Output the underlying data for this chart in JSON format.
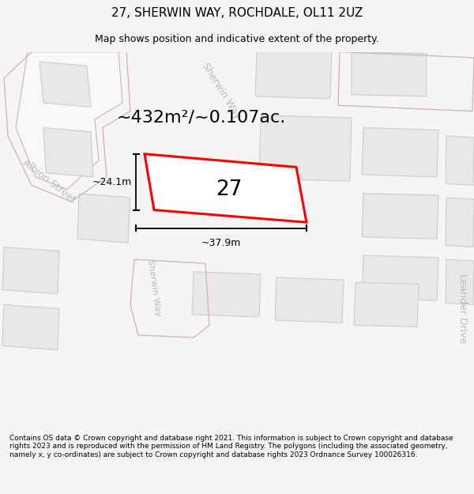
{
  "title": "27, SHERWIN WAY, ROCHDALE, OL11 2UZ",
  "subtitle": "Map shows position and indicative extent of the property.",
  "area_text": "~432m²/~0.107ac.",
  "number_label": "27",
  "dim_width": "~37.9m",
  "dim_height": "~24.1m",
  "footer": "Contains OS data © Crown copyright and database right 2021. This information is subject to Crown copyright and database rights 2023 and is reproduced with the permission of HM Land Registry. The polygons (including the associated geometry, namely x, y co-ordinates) are subject to Crown copyright and database rights 2023 Ordnance Survey 100026316.",
  "bg_color": "#f5f5f5",
  "map_bg": "#ffffff",
  "road_stroke": "#d4b0b0",
  "building_fill": "#e8e8e8",
  "building_stroke": "#c8a0a0",
  "street_label_color": "#bbbbbb",
  "title_color": "#000000",
  "footer_color": "#000000"
}
